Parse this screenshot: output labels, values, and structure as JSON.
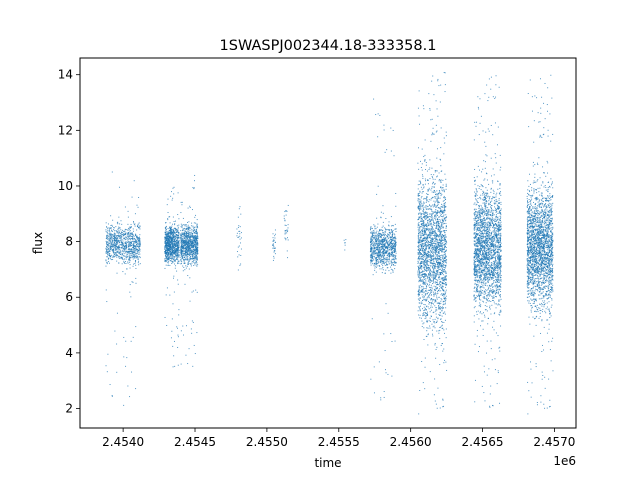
{
  "chart_data": {
    "type": "scatter",
    "title": "1SWASPJ002344.18-333358.1",
    "xlabel": "time",
    "ylabel": "flux",
    "x_offset_label": "1e6",
    "xlim": [
      2453700,
      2457150
    ],
    "ylim": [
      1.3,
      14.6
    ],
    "x_ticks": [
      2454000,
      2454500,
      2455000,
      2455500,
      2456000,
      2456500,
      2457000
    ],
    "x_tick_labels": [
      "2.4540",
      "2.4545",
      "2.4550",
      "2.4555",
      "2.4560",
      "2.4565",
      "2.4570"
    ],
    "y_ticks": [
      2,
      4,
      6,
      8,
      10,
      12,
      14
    ],
    "y_tick_labels": [
      "2",
      "4",
      "6",
      "8",
      "10",
      "12",
      "14"
    ],
    "grid": false,
    "legend": "none",
    "marker_color": "#1f77b4",
    "series": [
      {
        "clusters": [
          {
            "x": [
              2453880,
              2454120
            ],
            "center": 7.9,
            "core_spread": 0.45,
            "outlier_range": [
              1.9,
              11.1
            ],
            "density": "high"
          },
          {
            "x": [
              2454290,
              2454390
            ],
            "center": 7.9,
            "core_spread": 0.45,
            "outlier_range": [
              3.4,
              10.0
            ],
            "density": "high"
          },
          {
            "x": [
              2454400,
              2454520
            ],
            "center": 7.9,
            "core_spread": 0.45,
            "outlier_range": [
              3.4,
              10.4
            ],
            "density": "high"
          },
          {
            "x": [
              2454790,
              2454830
            ],
            "center": 8.3,
            "core_spread": 0.8,
            "outlier_range": [
              6.4,
              9.9
            ],
            "density": "low"
          },
          {
            "x": [
              2455040,
              2455060
            ],
            "center": 7.9,
            "core_spread": 0.4,
            "outlier_range": [
              7.3,
              8.5
            ],
            "density": "low"
          },
          {
            "x": [
              2455120,
              2455150
            ],
            "center": 8.5,
            "core_spread": 0.7,
            "outlier_range": [
              6.6,
              9.5
            ],
            "density": "low"
          },
          {
            "x": [
              2455530,
              2455560
            ],
            "center": 7.9,
            "core_spread": 0.2,
            "outlier_range": [
              7.6,
              8.2
            ],
            "density": "very-low"
          },
          {
            "x": [
              2455720,
              2455900
            ],
            "center": 7.8,
            "core_spread": 0.5,
            "outlier_range": [
              2.0,
              13.3
            ],
            "density": "high"
          },
          {
            "x": [
              2456050,
              2456250
            ],
            "center": 7.7,
            "core_spread": 1.7,
            "outlier_range": [
              1.8,
              14.1
            ],
            "density": "very-high"
          },
          {
            "x": [
              2456440,
              2456630
            ],
            "center": 7.8,
            "core_spread": 1.4,
            "outlier_range": [
              1.9,
              14.0
            ],
            "density": "very-high"
          },
          {
            "x": [
              2456810,
              2456990
            ],
            "center": 7.8,
            "core_spread": 1.4,
            "outlier_range": [
              1.8,
              14.0
            ],
            "density": "very-high"
          }
        ]
      }
    ]
  }
}
